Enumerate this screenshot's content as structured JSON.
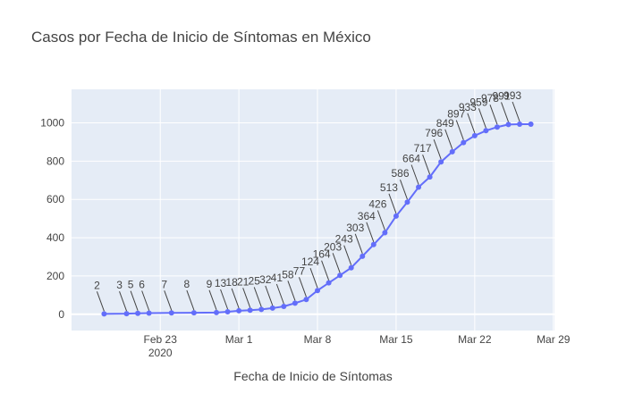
{
  "chart_data": {
    "type": "line",
    "title": "Casos por Fecha de Inicio de Síntomas en México",
    "xlabel": "Fecha de Inicio de Síntomas",
    "ylabel": "",
    "x_ticks": [
      "Feb 23",
      "Mar 1",
      "Mar 8",
      "Mar 15",
      "Mar 22",
      "Mar 29"
    ],
    "x_tick_year": "2020",
    "y_ticks": [
      0,
      200,
      400,
      600,
      800,
      1000
    ],
    "xlim": [
      "2020-02-16",
      "2020-03-29"
    ],
    "ylim": [
      -85,
      1175
    ],
    "grid": true,
    "colors": {
      "line": "#636efa",
      "plot_bg": "#e5ecf6",
      "grid": "#ffffff",
      "text": "#444444"
    },
    "series": [
      {
        "x": [
          "2020-02-18",
          "2020-02-20",
          "2020-02-21",
          "2020-02-22",
          "2020-02-24",
          "2020-02-26",
          "2020-02-28",
          "2020-02-29",
          "2020-03-01",
          "2020-03-02",
          "2020-03-03",
          "2020-03-04",
          "2020-03-05",
          "2020-03-06",
          "2020-03-07",
          "2020-03-08",
          "2020-03-09",
          "2020-03-10",
          "2020-03-11",
          "2020-03-12",
          "2020-03-13",
          "2020-03-14",
          "2020-03-15",
          "2020-03-16",
          "2020-03-17",
          "2020-03-18",
          "2020-03-19",
          "2020-03-20",
          "2020-03-21",
          "2020-03-22",
          "2020-03-23",
          "2020-03-24",
          "2020-03-25",
          "2020-03-26",
          "2020-03-27"
        ],
        "values": [
          2,
          3,
          5,
          6,
          7,
          8,
          9,
          13,
          18,
          21,
          25,
          32,
          41,
          58,
          77,
          124,
          164,
          203,
          243,
          303,
          364,
          426,
          513,
          586,
          664,
          717,
          796,
          849,
          897,
          933,
          959,
          978,
          991,
          993,
          993
        ],
        "labels": [
          "2",
          "3",
          "5",
          "6",
          "7",
          "8",
          "9",
          "13",
          "18",
          "21",
          "25",
          "32",
          "41",
          "58",
          "77",
          "124",
          "164",
          "203",
          "243",
          "303",
          "364",
          "426",
          "513",
          "586",
          "664",
          "717",
          "796",
          "849",
          "897",
          "933",
          "959",
          "978",
          "991",
          "993",
          ""
        ]
      }
    ]
  }
}
